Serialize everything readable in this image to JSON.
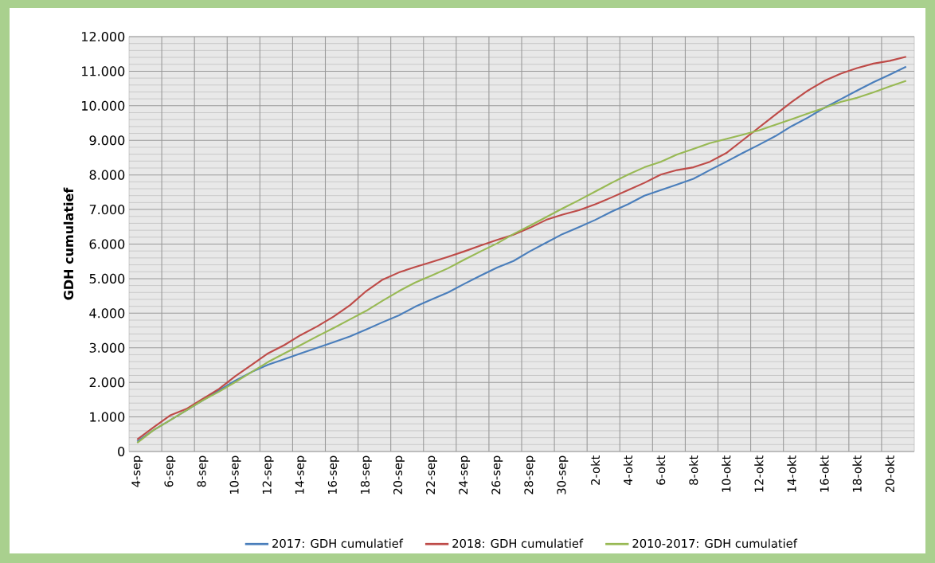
{
  "chart_data": {
    "type": "line",
    "ylabel": "GDH cumulatief",
    "categories": [
      "4-sep",
      null,
      "6-sep",
      null,
      "8-sep",
      null,
      "10-sep",
      null,
      "12-sep",
      null,
      "14-sep",
      null,
      "16-sep",
      null,
      "18-sep",
      null,
      "20-sep",
      null,
      "22-sep",
      null,
      "24-sep",
      null,
      "26-sep",
      null,
      "28-sep",
      null,
      "30-sep",
      null,
      "2-okt",
      null,
      "4-okt",
      null,
      "6-okt",
      null,
      "8-okt",
      null,
      "10-okt",
      null,
      "12-okt",
      null,
      "14-okt",
      null,
      "16-okt",
      null,
      "18-okt",
      null,
      "20-okt",
      null
    ],
    "series": [
      {
        "name": "2017: GDH cumulatief",
        "color": "#4a7ebb",
        "values": [
          290,
          620,
          900,
          1190,
          1480,
          1770,
          2050,
          2300,
          2510,
          2670,
          2840,
          3000,
          3160,
          3330,
          3530,
          3740,
          3940,
          4190,
          4400,
          4600,
          4850,
          5090,
          5320,
          5510,
          5790,
          6040,
          6290,
          6490,
          6700,
          6940,
          7150,
          7400,
          7560,
          7720,
          7890,
          8140,
          8380,
          8630,
          8870,
          9120,
          9410,
          9660,
          9940,
          10190,
          10440,
          10680,
          10900,
          11130
        ]
      },
      {
        "name": "2018: GDH cumulatief",
        "color": "#be4b48",
        "values": [
          350,
          700,
          1040,
          1230,
          1520,
          1810,
          2180,
          2510,
          2840,
          3080,
          3370,
          3620,
          3900,
          4230,
          4640,
          4970,
          5180,
          5340,
          5480,
          5630,
          5790,
          5960,
          6120,
          6270,
          6470,
          6700,
          6850,
          6980,
          7150,
          7350,
          7560,
          7770,
          8010,
          8140,
          8220,
          8380,
          8630,
          9000,
          9370,
          9740,
          10110,
          10440,
          10720,
          10930,
          11090,
          11220,
          11300,
          11420
        ]
      },
      {
        "name": "2010-2017: GDH cumulatief",
        "color": "#98b954",
        "values": [
          250,
          620,
          900,
          1190,
          1480,
          1730,
          2010,
          2300,
          2590,
          2840,
          3080,
          3330,
          3570,
          3820,
          4070,
          4360,
          4640,
          4890,
          5090,
          5300,
          5550,
          5790,
          6020,
          6290,
          6530,
          6780,
          7030,
          7270,
          7520,
          7770,
          8010,
          8220,
          8380,
          8590,
          8750,
          8920,
          9040,
          9160,
          9290,
          9450,
          9610,
          9780,
          9940,
          10110,
          10230,
          10390,
          10560,
          10720
        ]
      }
    ],
    "ylim": [
      0,
      12000
    ],
    "yticks": [
      0,
      {
        "value": 1000,
        "label": "1.000"
      },
      {
        "value": 2000,
        "label": "2.000"
      },
      {
        "value": 3000,
        "label": "3.000"
      },
      {
        "value": 4000,
        "label": "4.000"
      },
      {
        "value": 5000,
        "label": "5.000"
      },
      {
        "value": 6000,
        "label": "6.000"
      },
      {
        "value": 7000,
        "label": "7.000"
      },
      {
        "value": 8000,
        "label": "8.000"
      },
      {
        "value": 9000,
        "label": "9.000"
      },
      {
        "value": 10000,
        "label": "10.000"
      },
      {
        "value": 11000,
        "label": "11.000"
      },
      {
        "value": 12000,
        "label": "12.000"
      }
    ],
    "grid": true,
    "legend": "bottom",
    "marker": "none",
    "line_style": "solid"
  }
}
